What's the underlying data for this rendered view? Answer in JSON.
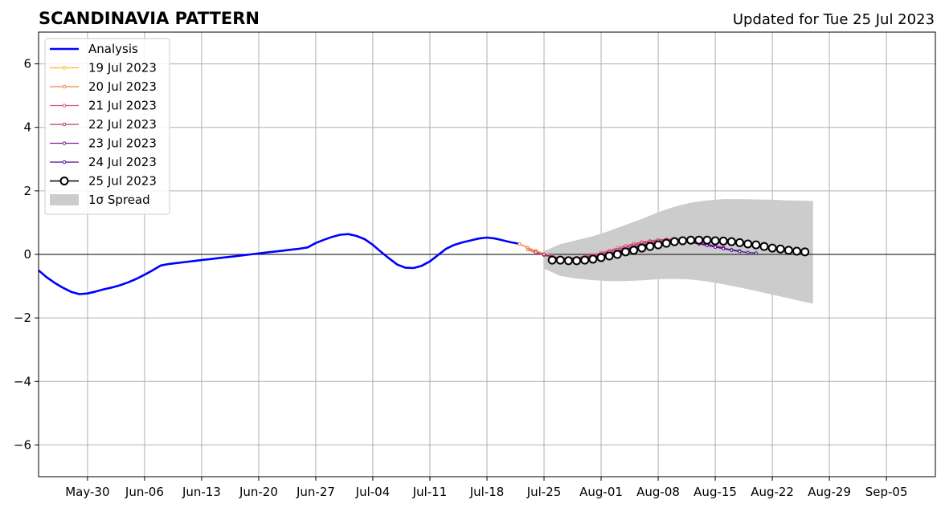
{
  "chart_data": {
    "type": "line",
    "title": "SCANDINAVIA PATTERN",
    "subtitle": "Updated for Tue 25 Jul 2023",
    "xlabel": "",
    "ylabel": "",
    "xlim": [
      "2023-05-24",
      "2023-09-11"
    ],
    "ylim": [
      -7,
      7
    ],
    "x_ticks": [
      {
        "date": "2023-05-30",
        "label": "May-30"
      },
      {
        "date": "2023-06-06",
        "label": "Jun-06"
      },
      {
        "date": "2023-06-13",
        "label": "Jun-13"
      },
      {
        "date": "2023-06-20",
        "label": "Jun-20"
      },
      {
        "date": "2023-06-27",
        "label": "Jun-27"
      },
      {
        "date": "2023-07-04",
        "label": "Jul-04"
      },
      {
        "date": "2023-07-11",
        "label": "Jul-11"
      },
      {
        "date": "2023-07-18",
        "label": "Jul-18"
      },
      {
        "date": "2023-07-25",
        "label": "Jul-25"
      },
      {
        "date": "2023-08-01",
        "label": "Aug-01"
      },
      {
        "date": "2023-08-08",
        "label": "Aug-08"
      },
      {
        "date": "2023-08-15",
        "label": "Aug-15"
      },
      {
        "date": "2023-08-22",
        "label": "Aug-22"
      },
      {
        "date": "2023-08-29",
        "label": "Aug-29"
      },
      {
        "date": "2023-09-05",
        "label": "Sep-05"
      }
    ],
    "y_ticks": [
      {
        "value": 6,
        "label": "6"
      },
      {
        "value": 4,
        "label": "4"
      },
      {
        "value": 2,
        "label": "2"
      },
      {
        "value": 0,
        "label": "0"
      },
      {
        "value": -2,
        "label": "−2"
      },
      {
        "value": -4,
        "label": "−4"
      },
      {
        "value": -6,
        "label": "−6"
      }
    ],
    "grid": true,
    "legend_position": "top-left",
    "analysis": {
      "name": "Analysis",
      "color": "#0000ff",
      "points": [
        [
          "2023-05-24",
          -0.5
        ],
        [
          "2023-05-25",
          -0.72
        ],
        [
          "2023-05-26",
          -0.9
        ],
        [
          "2023-05-27",
          -1.05
        ],
        [
          "2023-05-28",
          -1.18
        ],
        [
          "2023-05-29",
          -1.25
        ],
        [
          "2023-05-30",
          -1.23
        ],
        [
          "2023-05-31",
          -1.17
        ],
        [
          "2023-06-01",
          -1.1
        ],
        [
          "2023-06-02",
          -1.04
        ],
        [
          "2023-06-03",
          -0.97
        ],
        [
          "2023-06-04",
          -0.88
        ],
        [
          "2023-06-05",
          -0.77
        ],
        [
          "2023-06-06",
          -0.64
        ],
        [
          "2023-06-07",
          -0.5
        ],
        [
          "2023-06-08",
          -0.35
        ],
        [
          "2023-06-09",
          -0.3
        ],
        [
          "2023-06-10",
          -0.27
        ],
        [
          "2023-06-11",
          -0.24
        ],
        [
          "2023-06-12",
          -0.21
        ],
        [
          "2023-06-13",
          -0.18
        ],
        [
          "2023-06-14",
          -0.15
        ],
        [
          "2023-06-15",
          -0.12
        ],
        [
          "2023-06-16",
          -0.09
        ],
        [
          "2023-06-17",
          -0.06
        ],
        [
          "2023-06-18",
          -0.03
        ],
        [
          "2023-06-19",
          0.0
        ],
        [
          "2023-06-20",
          0.03
        ],
        [
          "2023-06-21",
          0.06
        ],
        [
          "2023-06-22",
          0.09
        ],
        [
          "2023-06-23",
          0.12
        ],
        [
          "2023-06-24",
          0.15
        ],
        [
          "2023-06-25",
          0.18
        ],
        [
          "2023-06-26",
          0.22
        ],
        [
          "2023-06-27",
          0.36
        ],
        [
          "2023-06-28",
          0.46
        ],
        [
          "2023-06-29",
          0.55
        ],
        [
          "2023-06-30",
          0.62
        ],
        [
          "2023-07-01",
          0.64
        ],
        [
          "2023-07-02",
          0.58
        ],
        [
          "2023-07-03",
          0.48
        ],
        [
          "2023-07-04",
          0.3
        ],
        [
          "2023-07-05",
          0.08
        ],
        [
          "2023-07-06",
          -0.13
        ],
        [
          "2023-07-07",
          -0.32
        ],
        [
          "2023-07-08",
          -0.42
        ],
        [
          "2023-07-09",
          -0.43
        ],
        [
          "2023-07-10",
          -0.36
        ],
        [
          "2023-07-11",
          -0.22
        ],
        [
          "2023-07-12",
          -0.02
        ],
        [
          "2023-07-13",
          0.18
        ],
        [
          "2023-07-14",
          0.3
        ],
        [
          "2023-07-15",
          0.38
        ],
        [
          "2023-07-16",
          0.44
        ],
        [
          "2023-07-17",
          0.5
        ],
        [
          "2023-07-18",
          0.53
        ],
        [
          "2023-07-19",
          0.5
        ],
        [
          "2023-07-20",
          0.44
        ],
        [
          "2023-07-21",
          0.38
        ],
        [
          "2023-07-22",
          0.33
        ]
      ]
    },
    "forecasts": [
      {
        "name": "19 Jul 2023",
        "color": "#fcb42e",
        "start": "2023-07-22",
        "values": [
          0.33,
          0.22,
          0.12,
          0.03,
          -0.05,
          -0.1,
          -0.12,
          -0.12,
          -0.1,
          -0.07,
          -0.03,
          0.03,
          0.1,
          0.18,
          0.25,
          0.32,
          0.38,
          0.43,
          0.47,
          0.5
        ]
      },
      {
        "name": "20 Jul 2023",
        "color": "#f3824b",
        "start": "2023-07-22",
        "values": [
          0.33,
          0.2,
          0.09,
          0.0,
          -0.07,
          -0.11,
          -0.12,
          -0.11,
          -0.08,
          -0.04,
          0.02,
          0.09,
          0.16,
          0.23,
          0.3,
          0.36,
          0.41,
          0.45,
          0.48,
          0.5,
          0.51
        ]
      },
      {
        "name": "21 Jul 2023",
        "color": "#de5572",
        "start": "2023-07-23",
        "values": [
          0.15,
          0.05,
          -0.03,
          -0.09,
          -0.12,
          -0.12,
          -0.1,
          -0.06,
          -0.01,
          0.05,
          0.12,
          0.2,
          0.27,
          0.34,
          0.39,
          0.43,
          0.46,
          0.47,
          0.47,
          0.45,
          0.42,
          0.38
        ]
      },
      {
        "name": "22 Jul 2023",
        "color": "#b5367a",
        "start": "2023-07-24",
        "values": [
          0.07,
          -0.02,
          -0.08,
          -0.12,
          -0.13,
          -0.12,
          -0.09,
          -0.05,
          0.01,
          0.08,
          0.15,
          0.22,
          0.29,
          0.35,
          0.4,
          0.44,
          0.46,
          0.46,
          0.44,
          0.41,
          0.37,
          0.32,
          0.27,
          0.22
        ]
      },
      {
        "name": "23 Jul 2023",
        "color": "#851e9f",
        "start": "2023-07-25",
        "values": [
          0.0,
          -0.07,
          -0.12,
          -0.14,
          -0.14,
          -0.12,
          -0.08,
          -0.03,
          0.03,
          0.1,
          0.17,
          0.24,
          0.3,
          0.35,
          0.39,
          0.42,
          0.43,
          0.42,
          0.39,
          0.35,
          0.3,
          0.25,
          0.2,
          0.15,
          0.11
        ]
      },
      {
        "name": "24 Jul 2023",
        "color": "#4a0c8e",
        "start": "2023-07-26",
        "values": [
          -0.1,
          -0.15,
          -0.17,
          -0.17,
          -0.15,
          -0.11,
          -0.06,
          0.0,
          0.07,
          0.14,
          0.21,
          0.27,
          0.33,
          0.37,
          0.4,
          0.41,
          0.4,
          0.37,
          0.33,
          0.28,
          0.23,
          0.18,
          0.13,
          0.09,
          0.06,
          0.04
        ]
      }
    ],
    "latest": {
      "name": "25 Jul 2023",
      "color": "#000000",
      "start": "2023-07-26",
      "values": [
        -0.18,
        -0.18,
        -0.2,
        -0.2,
        -0.18,
        -0.15,
        -0.1,
        -0.05,
        0.0,
        0.08,
        0.13,
        0.2,
        0.25,
        0.3,
        0.35,
        0.4,
        0.43,
        0.45,
        0.45,
        0.45,
        0.43,
        0.42,
        0.4,
        0.37,
        0.33,
        0.3,
        0.25,
        0.2,
        0.17,
        0.13,
        0.1,
        0.08
      ]
    },
    "spread": {
      "name": "1σ Spread",
      "color": "#cccccc",
      "points": [
        [
          "2023-07-25",
          0.1,
          -0.45
        ],
        [
          "2023-07-27",
          0.32,
          -0.68
        ],
        [
          "2023-07-29",
          0.45,
          -0.76
        ],
        [
          "2023-07-31",
          0.57,
          -0.81
        ],
        [
          "2023-08-02",
          0.74,
          -0.84
        ],
        [
          "2023-08-04",
          0.93,
          -0.84
        ],
        [
          "2023-08-06",
          1.12,
          -0.82
        ],
        [
          "2023-08-08",
          1.33,
          -0.78
        ],
        [
          "2023-08-10",
          1.5,
          -0.77
        ],
        [
          "2023-08-12",
          1.63,
          -0.79
        ],
        [
          "2023-08-14",
          1.7,
          -0.85
        ],
        [
          "2023-08-16",
          1.74,
          -0.94
        ],
        [
          "2023-08-18",
          1.74,
          -1.04
        ],
        [
          "2023-08-20",
          1.73,
          -1.15
        ],
        [
          "2023-08-22",
          1.72,
          -1.27
        ],
        [
          "2023-08-24",
          1.7,
          -1.38
        ],
        [
          "2023-08-26",
          1.69,
          -1.5
        ],
        [
          "2023-08-27",
          1.68,
          -1.55
        ]
      ]
    }
  }
}
